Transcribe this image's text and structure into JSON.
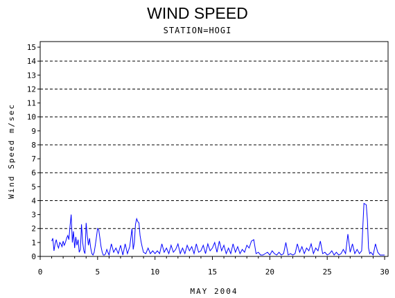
{
  "chart_data": {
    "type": "line",
    "title": "WIND SPEED",
    "subtitle": "STATION=HOGI",
    "xlabel": "MAY 2004",
    "ylabel": "Wind Speed m/sec",
    "xlim": [
      0,
      30.3
    ],
    "ylim": [
      0,
      15.4
    ],
    "x_ticks": [
      0,
      5,
      10,
      15,
      20,
      25,
      30
    ],
    "y_ticks": [
      0,
      1,
      2,
      3,
      4,
      5,
      6,
      7,
      8,
      9,
      10,
      11,
      12,
      13,
      14,
      15
    ],
    "gridlines_y": [
      2,
      4,
      6,
      8,
      10,
      12,
      14
    ],
    "grid_style": "dashed horizontal",
    "line_color": "#0000ff",
    "series": [
      {
        "x": [
          1.0,
          1.1,
          1.2,
          1.3,
          1.4,
          1.5,
          1.6,
          1.7,
          1.8,
          1.9,
          2.0,
          2.1,
          2.2,
          2.3,
          2.4,
          2.5,
          2.6,
          2.7,
          2.8,
          2.9,
          3.0,
          3.1,
          3.2,
          3.3,
          3.4,
          3.5,
          3.6,
          3.7,
          3.8,
          3.9,
          4.0,
          4.1,
          4.2,
          4.3,
          4.4,
          4.5,
          4.6,
          4.7,
          4.8,
          4.9,
          5.0,
          5.1,
          5.2,
          5.3,
          5.4,
          5.5,
          5.6,
          5.7,
          5.8,
          5.9,
          6.0,
          6.2,
          6.4,
          6.6,
          6.8,
          7.0,
          7.2,
          7.4,
          7.6,
          7.8,
          8.0,
          8.1,
          8.2,
          8.3,
          8.4,
          8.5,
          8.6,
          8.7,
          8.8,
          8.9,
          9.0,
          9.2,
          9.4,
          9.6,
          9.8,
          10.0,
          10.2,
          10.4,
          10.6,
          10.8,
          11.0,
          11.2,
          11.4,
          11.6,
          11.8,
          12.0,
          12.2,
          12.4,
          12.6,
          12.8,
          13.0,
          13.2,
          13.4,
          13.6,
          13.8,
          14.0,
          14.2,
          14.4,
          14.6,
          14.8,
          15.0,
          15.2,
          15.4,
          15.6,
          15.8,
          16.0,
          16.2,
          16.4,
          16.6,
          16.8,
          17.0,
          17.2,
          17.4,
          17.6,
          17.8,
          18.0,
          18.2,
          18.4,
          18.6,
          18.8,
          19.0,
          19.2,
          19.4,
          19.6,
          19.8,
          20.0,
          20.2,
          20.4,
          20.6,
          20.8,
          21.0,
          21.2,
          21.4,
          21.6,
          21.8,
          22.0,
          22.2,
          22.4,
          22.6,
          22.8,
          23.0,
          23.2,
          23.4,
          23.6,
          23.8,
          24.0,
          24.2,
          24.4,
          24.6,
          24.8,
          25.0,
          25.2,
          25.4,
          25.6,
          25.8,
          26.0,
          26.2,
          26.4,
          26.6,
          26.8,
          27.0,
          27.2,
          27.4,
          27.6,
          27.8,
          28.0,
          28.2,
          28.4,
          28.5,
          28.6,
          28.7,
          28.8,
          29.0,
          29.2,
          29.4,
          29.6,
          29.8,
          30.0
        ],
        "y": [
          1.1,
          1.3,
          0.4,
          0.9,
          1.2,
          0.8,
          0.6,
          1.0,
          0.9,
          0.7,
          1.1,
          0.8,
          1.0,
          1.3,
          1.5,
          1.2,
          2.2,
          3.0,
          1.0,
          1.8,
          0.6,
          1.4,
          0.8,
          1.2,
          0.3,
          0.5,
          2.3,
          1.0,
          0.4,
          0.2,
          2.4,
          1.5,
          0.8,
          1.3,
          0.6,
          0.2,
          0.1,
          0.3,
          0.8,
          1.4,
          2.0,
          1.9,
          1.3,
          0.7,
          0.3,
          0.1,
          0.1,
          0.2,
          0.5,
          0.3,
          0.1,
          0.9,
          0.3,
          0.6,
          0.2,
          0.8,
          0.1,
          0.9,
          0.2,
          0.7,
          2.0,
          0.5,
          1.0,
          2.3,
          2.7,
          2.5,
          2.4,
          1.5,
          1.0,
          0.6,
          0.3,
          0.2,
          0.6,
          0.2,
          0.4,
          0.2,
          0.4,
          0.2,
          0.9,
          0.3,
          0.6,
          0.2,
          0.8,
          0.3,
          0.5,
          0.9,
          0.2,
          0.6,
          0.2,
          0.8,
          0.4,
          0.7,
          0.2,
          0.9,
          0.3,
          0.4,
          0.8,
          0.2,
          0.9,
          0.4,
          0.6,
          1.0,
          0.3,
          1.1,
          0.4,
          0.8,
          0.2,
          0.6,
          0.2,
          0.9,
          0.3,
          0.7,
          0.2,
          0.5,
          0.3,
          0.8,
          0.6,
          1.1,
          1.2,
          0.2,
          0.3,
          0.1,
          0.1,
          0.2,
          0.3,
          0.1,
          0.4,
          0.2,
          0.1,
          0.3,
          0.1,
          0.2,
          1.0,
          0.1,
          0.2,
          0.1,
          0.2,
          0.9,
          0.3,
          0.7,
          0.2,
          0.6,
          0.4,
          0.9,
          0.2,
          0.6,
          0.4,
          1.1,
          0.2,
          0.3,
          0.1,
          0.2,
          0.4,
          0.1,
          0.3,
          0.1,
          0.2,
          0.5,
          0.2,
          1.6,
          0.3,
          0.9,
          0.2,
          0.5,
          0.2,
          0.4,
          3.8,
          3.7,
          2.6,
          0.6,
          0.2,
          0.3,
          0.1,
          0.9,
          0.3,
          0.1,
          0.1,
          0.1
        ]
      }
    ]
  }
}
